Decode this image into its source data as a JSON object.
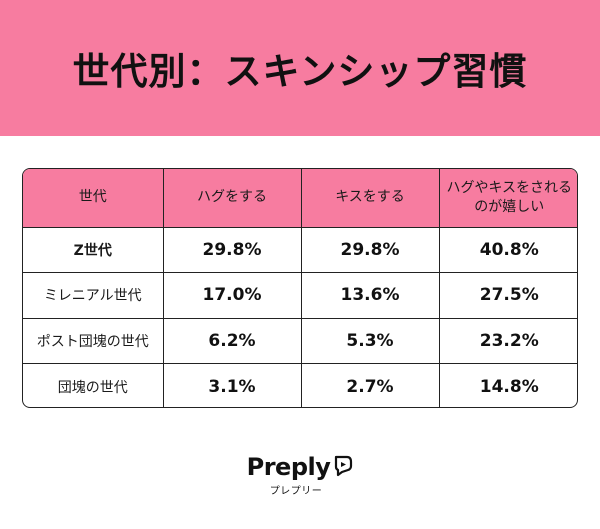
{
  "title": "世代別：スキンシップ習慣",
  "table": {
    "headers": [
      "世代",
      "ハグをする",
      "キスをする",
      "ハグやキスをされるのが嬉しい"
    ],
    "rows": [
      {
        "generation": "Z世代",
        "hug": "29.8%",
        "kiss": "29.8%",
        "happy": "40.8%"
      },
      {
        "generation": "ミレニアル世代",
        "hug": "17.0%",
        "kiss": "13.6%",
        "happy": "27.5%"
      },
      {
        "generation": "ポスト団塊の世代",
        "hug": "6.2%",
        "kiss": "5.3%",
        "happy": "23.2%"
      },
      {
        "generation": "団塊の世代",
        "hug": "3.1%",
        "kiss": "2.7%",
        "happy": "14.8%"
      }
    ]
  },
  "logo": {
    "wordmark": "Preply",
    "subtitle": "プレプリー"
  },
  "colors": {
    "accent": "#f77ca0",
    "text": "#111111",
    "border": "#222222"
  }
}
